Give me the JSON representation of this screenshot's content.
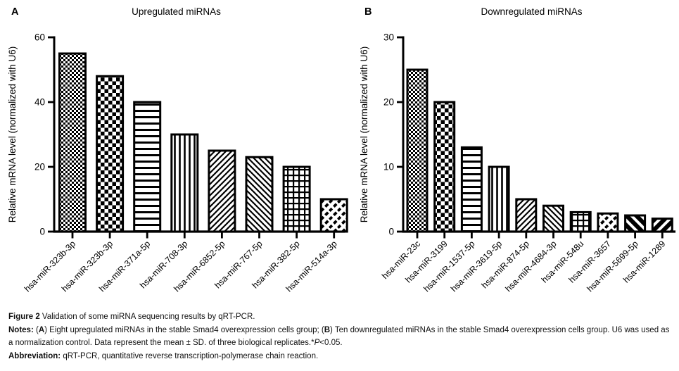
{
  "figure": {
    "panels": [
      {
        "panel_label": "A",
        "title": "Upregulated miRNAs"
      },
      {
        "panel_label": "B",
        "title": "Downregulated miRNAs"
      }
    ]
  },
  "chart_data": [
    {
      "type": "bar",
      "panel_label": "A",
      "title": "Upregulated miRNAs",
      "xlabel": "",
      "ylabel": "Relative mRNA level (normalized with U6)",
      "ylim": [
        0,
        60
      ],
      "yticks": [
        0,
        20,
        40,
        60
      ],
      "grid": false,
      "legend": "none",
      "categories": [
        "hsa-miR-323b-3p",
        "hsa-miR-323b-3p",
        "hsa-miR-371a-5p",
        "hsa-miR-708-3p",
        "hsa-miR-6852-5p",
        "hsa-miR-767-5p",
        "hsa-miR-382-5p",
        "hsa-miR-514a-3p"
      ],
      "values": [
        55,
        48,
        40,
        30,
        25,
        23,
        20,
        10
      ],
      "bar_color": "#000000",
      "bar_fill_patterns": [
        "checker-fine",
        "checker-coarse",
        "horizontal-lines",
        "vertical-lines",
        "diagonal-up",
        "diagonal-down",
        "grid",
        "diagonal-dash"
      ]
    },
    {
      "type": "bar",
      "panel_label": "B",
      "title": "Downregulated miRNAs",
      "xlabel": "",
      "ylabel": "Relative mRNA level (normalized with U6)",
      "ylim": [
        0,
        30
      ],
      "yticks": [
        0,
        10,
        20,
        30
      ],
      "grid": false,
      "legend": "none",
      "categories": [
        "hsa-miR-23c",
        "hsa-miR-3199",
        "hsa-miR-1537-5p",
        "hsa-miR-3619-5p",
        "hsa-miR-874-5p",
        "hsa-miR-4684-3p",
        "hsa-miR-548u",
        "hsa-miR-3657",
        "hsa-miR-5699-5p",
        "hsa-miR-1289"
      ],
      "values": [
        25,
        20,
        13,
        10,
        5,
        4,
        3,
        2.8,
        2.5,
        2
      ],
      "bar_color": "#000000",
      "bar_fill_patterns": [
        "checker-fine",
        "checker-coarse",
        "horizontal-lines",
        "vertical-lines",
        "diagonal-up",
        "diagonal-down",
        "grid",
        "diagonal-dash",
        "diagonal-down-wide",
        "diagonal-up-wide"
      ]
    }
  ],
  "caption": {
    "paragraphs": [
      [
        {
          "t": "Figure 2",
          "s": "b"
        },
        {
          "t": " Validation of some miRNA sequencing results by qRT-PCR.",
          "s": "n"
        }
      ],
      [
        {
          "t": "Notes:",
          "s": "b"
        },
        {
          "t": " (",
          "s": "n"
        },
        {
          "t": "A",
          "s": "b"
        },
        {
          "t": ") Eight upregulated miRNAs in the stable Smad4 overexpression cells group; (",
          "s": "n"
        },
        {
          "t": "B",
          "s": "b"
        },
        {
          "t": ") Ten downregulated miRNAs in the stable Smad4 overexpression cells group. U6 was used as a normalization control. Data represent the mean ± SD. of three biological replicates.*",
          "s": "n"
        },
        {
          "t": "P",
          "s": "i"
        },
        {
          "t": "<0.05.",
          "s": "n"
        }
      ],
      [
        {
          "t": "Abbreviation:",
          "s": "b"
        },
        {
          "t": " qRT-PCR, quantitative reverse transcription-polymerase chain reaction.",
          "s": "n"
        }
      ]
    ]
  }
}
